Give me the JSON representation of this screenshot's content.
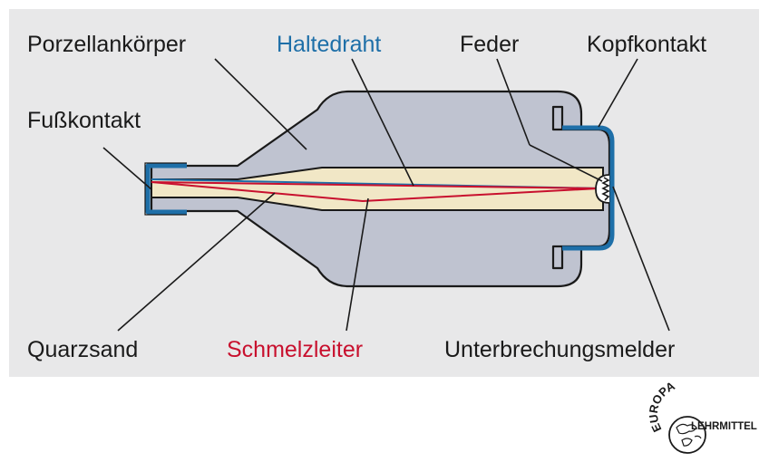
{
  "labels": {
    "porzellankoerper": "Porzellankörper",
    "haltedraht": "Haltedraht",
    "feder": "Feder",
    "kopfkontakt": "Kopfkontakt",
    "fusskontakt": "Fußkontakt",
    "quarzsand": "Quarzsand",
    "schmelzleiter": "Schmelzleiter",
    "unterbrechungsmelder": "Unterbrechungsmelder"
  },
  "colors": {
    "panel_background": "#e8e8e9",
    "porcelain_body": "#bfc3d0",
    "quartz_sand": "#f1e7c6",
    "contacts": "#1e6fa8",
    "holding_wire": "#1e6fa8",
    "fuse_wire": "#c8102e",
    "label_text": "#1a1a1a"
  },
  "logo": {
    "top_text": "EUROPA",
    "side_text": "LEHRMITTEL",
    "icon": "globe-icon"
  }
}
